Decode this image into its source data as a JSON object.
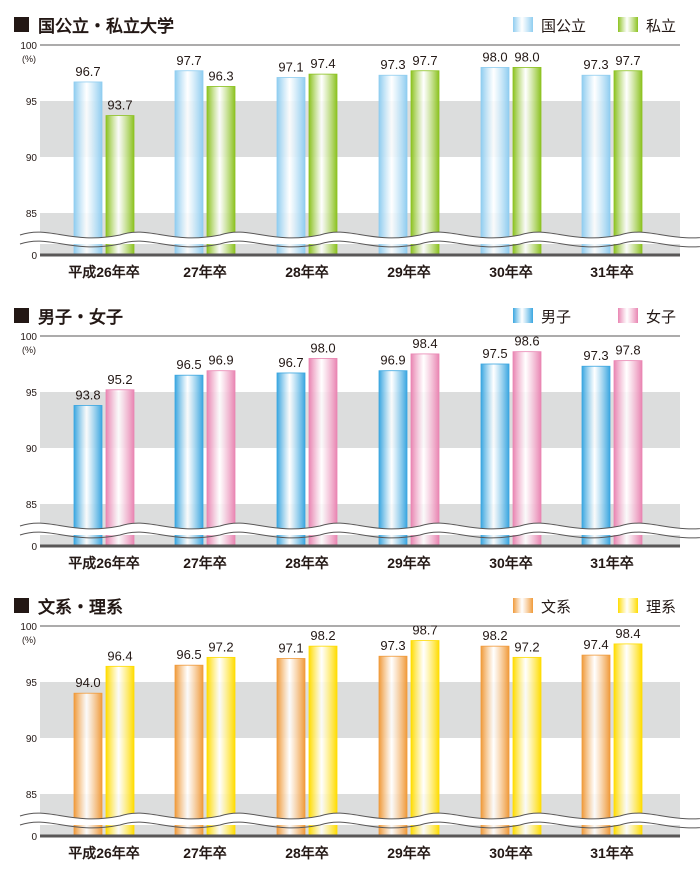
{
  "chart_data": [
    {
      "type": "bar",
      "title": "国公立・私立大学",
      "ylabel": "(%)",
      "yticks": [
        "100",
        "95",
        "90",
        "85",
        "0"
      ],
      "ylim": [
        0,
        100
      ],
      "axis_break": [
        0,
        85
      ],
      "grid": "bands",
      "categories": [
        "平成26年卒",
        "27年卒",
        "28年卒",
        "29年卒",
        "30年卒",
        "31年卒"
      ],
      "legend": "top-right",
      "series": [
        {
          "name": "国公立",
          "values": [
            96.7,
            97.7,
            97.1,
            97.3,
            98.0,
            97.3
          ],
          "labels": [
            "96.7",
            "97.7",
            "97.1",
            "97.3",
            "98.0",
            "97.3"
          ],
          "color": "#8fcdf0"
        },
        {
          "name": "私立",
          "values": [
            93.7,
            96.3,
            97.4,
            97.7,
            98.0,
            97.7
          ],
          "labels": [
            "93.7",
            "96.3",
            "97.4",
            "97.7",
            "98.0",
            "97.7"
          ],
          "color": "#8cc220"
        }
      ]
    },
    {
      "type": "bar",
      "title": "男子・女子",
      "ylabel": "(%)",
      "yticks": [
        "100",
        "95",
        "90",
        "85",
        "0"
      ],
      "ylim": [
        0,
        100
      ],
      "axis_break": [
        0,
        85
      ],
      "grid": "bands",
      "categories": [
        "平成26年卒",
        "27年卒",
        "28年卒",
        "29年卒",
        "30年卒",
        "31年卒"
      ],
      "legend": "top-right",
      "series": [
        {
          "name": "男子",
          "values": [
            93.8,
            96.5,
            96.7,
            96.9,
            97.5,
            97.3
          ],
          "labels": [
            "93.8",
            "96.5",
            "96.7",
            "96.9",
            "97.5",
            "97.3"
          ],
          "color": "#3aa6e0"
        },
        {
          "name": "女子",
          "values": [
            95.2,
            96.9,
            98.0,
            98.4,
            98.6,
            97.8
          ],
          "labels": [
            "95.2",
            "96.9",
            "98.0",
            "98.4",
            "98.6",
            "97.8"
          ],
          "color": "#e985b2"
        }
      ]
    },
    {
      "type": "bar",
      "title": "文系・理系",
      "ylabel": "(%)",
      "yticks": [
        "100",
        "95",
        "90",
        "85",
        "0"
      ],
      "ylim": [
        0,
        100
      ],
      "axis_break": [
        0,
        85
      ],
      "grid": "bands",
      "categories": [
        "平成26年卒",
        "27年卒",
        "28年卒",
        "29年卒",
        "30年卒",
        "31年卒"
      ],
      "legend": "top-right",
      "series": [
        {
          "name": "文系",
          "values": [
            94.0,
            96.5,
            97.1,
            97.3,
            98.2,
            97.4
          ],
          "labels": [
            "94.0",
            "96.5",
            "97.1",
            "97.3",
            "98.2",
            "97.4"
          ],
          "color": "#f09a3a"
        },
        {
          "name": "理系",
          "values": [
            96.4,
            97.2,
            98.2,
            98.7,
            97.2,
            98.4
          ],
          "labels": [
            "96.4",
            "97.2",
            "98.2",
            "98.7",
            "97.2",
            "98.4"
          ],
          "color": "#ffdc00"
        }
      ]
    }
  ]
}
